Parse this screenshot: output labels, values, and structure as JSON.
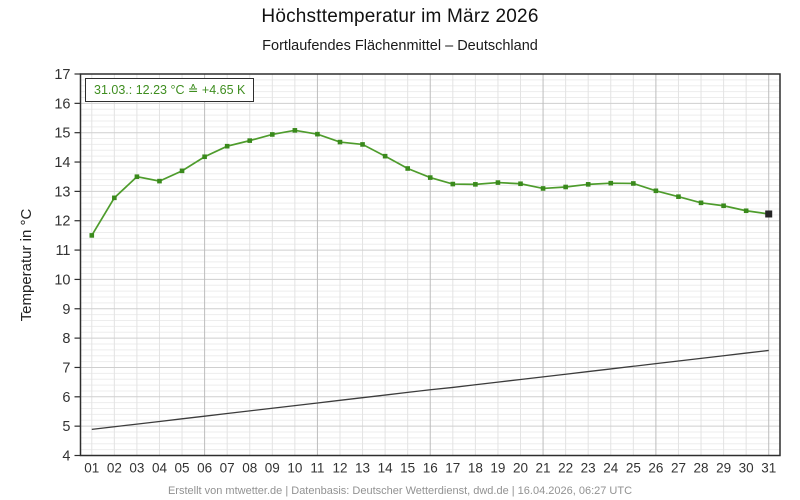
{
  "header": {
    "title": "Höchsttemperatur im März 2026",
    "subtitle": "Fortlaufendes Flächenmittel – Deutschland"
  },
  "annotation": {
    "text": "31.03.: 12.23 °C ≙ +4.65 K",
    "date": "31.03.",
    "value_c": 12.23,
    "anomaly_k": "+4.65",
    "color": "#3f8e20"
  },
  "footer": {
    "credit": "Erstellt von mtwetter.de | Datenbasis: Deutscher Wetterdienst, dwd.de | 16.04.2026, 06:27 UTC"
  },
  "colors": {
    "series_max": "#4e9c2c",
    "series_max_marker": "#3a8a1c",
    "series_mean": "#3c3c3c",
    "highlight_marker": "#262626",
    "axis": "#2e2e2e",
    "tick_label": "#333333",
    "grid_minor_h": "#ededed",
    "grid_major_h": "#cfcfcf",
    "grid_minor_v": "#e3e3e3",
    "grid_major_v": "#bdbdbd"
  },
  "chart_data": {
    "type": "line",
    "title": "Höchsttemperatur im März 2026",
    "subtitle": "Fortlaufendes Flächenmittel – Deutschland",
    "xlabel": "",
    "ylabel": "Temperatur in °C",
    "xlim": [
      0.5,
      31.5
    ],
    "ylim": [
      4,
      17
    ],
    "grid": "minor 0.2 °C / 1 day, major 1 °C / 5 days, legend none",
    "x_ticks": [
      "01",
      "02",
      "03",
      "04",
      "05",
      "06",
      "07",
      "08",
      "09",
      "10",
      "11",
      "12",
      "13",
      "14",
      "15",
      "16",
      "17",
      "18",
      "19",
      "20",
      "21",
      "22",
      "23",
      "24",
      "25",
      "26",
      "27",
      "28",
      "29",
      "30",
      "31"
    ],
    "y_ticks": [
      "4",
      "5",
      "6",
      "7",
      "8",
      "9",
      "10",
      "11",
      "12",
      "13",
      "14",
      "15",
      "16",
      "17"
    ],
    "major_x_days": [
      6,
      11,
      16,
      21,
      26,
      31
    ],
    "series": [
      {
        "name": "max-temperature-running-mean",
        "marker": "square",
        "values": [
          11.5,
          12.78,
          13.5,
          13.35,
          13.7,
          14.18,
          14.54,
          14.73,
          14.94,
          15.08,
          14.95,
          14.68,
          14.6,
          14.2,
          13.78,
          13.47,
          13.25,
          13.24,
          13.3,
          13.26,
          13.1,
          13.15,
          13.24,
          13.28,
          13.27,
          13.02,
          12.82,
          12.61,
          12.51,
          12.34,
          12.23
        ]
      },
      {
        "name": "climatological-reference",
        "marker": "none",
        "values": [
          4.89,
          4.98,
          5.07,
          5.16,
          5.25,
          5.34,
          5.43,
          5.52,
          5.61,
          5.7,
          5.79,
          5.88,
          5.97,
          6.06,
          6.15,
          6.24,
          6.32,
          6.41,
          6.5,
          6.59,
          6.68,
          6.77,
          6.86,
          6.95,
          7.04,
          7.13,
          7.22,
          7.31,
          7.4,
          7.49,
          7.58
        ]
      }
    ],
    "highlight_last_point": {
      "day": 31,
      "value": 12.23
    }
  }
}
